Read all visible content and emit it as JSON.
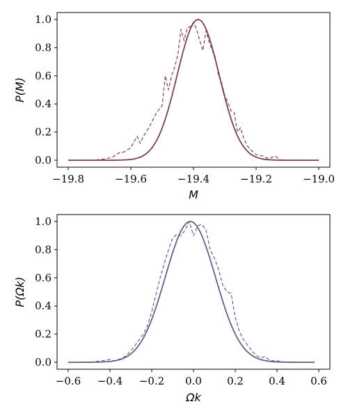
{
  "chart_data": [
    {
      "type": "line",
      "title": "",
      "xlabel": "M",
      "ylabel": "P(M)",
      "xlim": [
        -19.8,
        -19.0
      ],
      "ylim": [
        0.0,
        1.0
      ],
      "xticks": [
        "−19.8",
        "−19.6",
        "−19.4",
        "−19.2",
        "−19.0"
      ],
      "xtick_values": [
        -19.8,
        -19.6,
        -19.4,
        -19.2,
        -19.0
      ],
      "yticks": [
        "0.0",
        "0.2",
        "0.4",
        "0.6",
        "0.8",
        "1.0"
      ],
      "ytick_values": [
        0.0,
        0.2,
        0.4,
        0.6,
        0.8,
        1.0
      ],
      "grid": false,
      "color": "#7a3e55",
      "series": [
        {
          "style": "solid",
          "fit": {
            "kind": "gaussian",
            "mean": -19.385,
            "sigma": 0.067,
            "xmin": -19.8,
            "xmax": -19.0
          }
        },
        {
          "style": "dashed",
          "x": [
            -19.8,
            -19.76,
            -19.72,
            -19.68,
            -19.66,
            -19.64,
            -19.62,
            -19.6,
            -19.58,
            -19.57,
            -19.56,
            -19.54,
            -19.52,
            -19.5,
            -19.49,
            -19.48,
            -19.47,
            -19.46,
            -19.45,
            -19.44,
            -19.43,
            -19.42,
            -19.41,
            -19.4,
            -19.39,
            -19.38,
            -19.37,
            -19.36,
            -19.35,
            -19.34,
            -19.33,
            -19.32,
            -19.31,
            -19.3,
            -19.29,
            -19.28,
            -19.27,
            -19.26,
            -19.25,
            -19.24,
            -19.23,
            -19.22,
            -19.21,
            -19.2,
            -19.18,
            -19.16,
            -19.14,
            -19.12,
            -19.1,
            -19.08,
            -19.0
          ],
          "y": [
            0.0,
            0.0,
            0.0,
            0.01,
            0.02,
            0.05,
            0.06,
            0.09,
            0.17,
            0.12,
            0.17,
            0.24,
            0.33,
            0.39,
            0.6,
            0.5,
            0.6,
            0.66,
            0.75,
            0.93,
            0.85,
            0.94,
            0.95,
            0.98,
            0.93,
            0.85,
            0.78,
            0.92,
            0.84,
            0.78,
            0.73,
            0.6,
            0.55,
            0.46,
            0.41,
            0.35,
            0.34,
            0.2,
            0.23,
            0.16,
            0.11,
            0.08,
            0.06,
            0.04,
            0.03,
            0.01,
            0.03,
            0.0,
            0.0,
            0.0,
            0.0
          ]
        }
      ]
    },
    {
      "type": "line",
      "title": "",
      "xlabel": "Ωk",
      "ylabel": "P(Ωk)",
      "xlim": [
        -0.6,
        0.6
      ],
      "ylim": [
        0.0,
        1.0
      ],
      "xticks": [
        "−0.6",
        "−0.4",
        "−0.2",
        "0.0",
        "0.2",
        "0.4",
        "0.6"
      ],
      "xtick_values": [
        -0.6,
        -0.4,
        -0.2,
        0.0,
        0.2,
        0.4,
        0.6
      ],
      "yticks": [
        "0.0",
        "0.2",
        "0.4",
        "0.6",
        "0.8",
        "1.0"
      ],
      "ytick_values": [
        0.0,
        0.2,
        0.4,
        0.6,
        0.8,
        1.0
      ],
      "grid": false,
      "color": "#5f6288",
      "series": [
        {
          "style": "solid",
          "fit": {
            "kind": "gaussian",
            "mean": -0.015,
            "sigma": 0.12,
            "xmin": -0.6,
            "xmax": 0.58
          }
        },
        {
          "style": "dashed",
          "x": [
            -0.6,
            -0.5,
            -0.44,
            -0.4,
            -0.38,
            -0.36,
            -0.34,
            -0.32,
            -0.3,
            -0.28,
            -0.26,
            -0.24,
            -0.22,
            -0.2,
            -0.18,
            -0.16,
            -0.14,
            -0.12,
            -0.1,
            -0.08,
            -0.06,
            -0.04,
            -0.02,
            0.0,
            0.02,
            0.04,
            0.06,
            0.08,
            0.1,
            0.12,
            0.14,
            0.16,
            0.18,
            0.2,
            0.22,
            0.24,
            0.26,
            0.28,
            0.3,
            0.32,
            0.34,
            0.36,
            0.38,
            0.4,
            0.44,
            0.5,
            0.58
          ],
          "y": [
            0.0,
            0.0,
            0.01,
            0.02,
            0.01,
            0.02,
            0.03,
            0.05,
            0.08,
            0.12,
            0.16,
            0.2,
            0.26,
            0.36,
            0.48,
            0.6,
            0.7,
            0.8,
            0.88,
            0.91,
            0.9,
            0.94,
            1.0,
            0.9,
            0.97,
            0.98,
            0.94,
            0.8,
            0.74,
            0.66,
            0.55,
            0.5,
            0.49,
            0.32,
            0.22,
            0.16,
            0.12,
            0.08,
            0.05,
            0.03,
            0.04,
            0.02,
            0.01,
            0.01,
            0.0,
            0.0,
            0.0
          ]
        }
      ]
    }
  ]
}
